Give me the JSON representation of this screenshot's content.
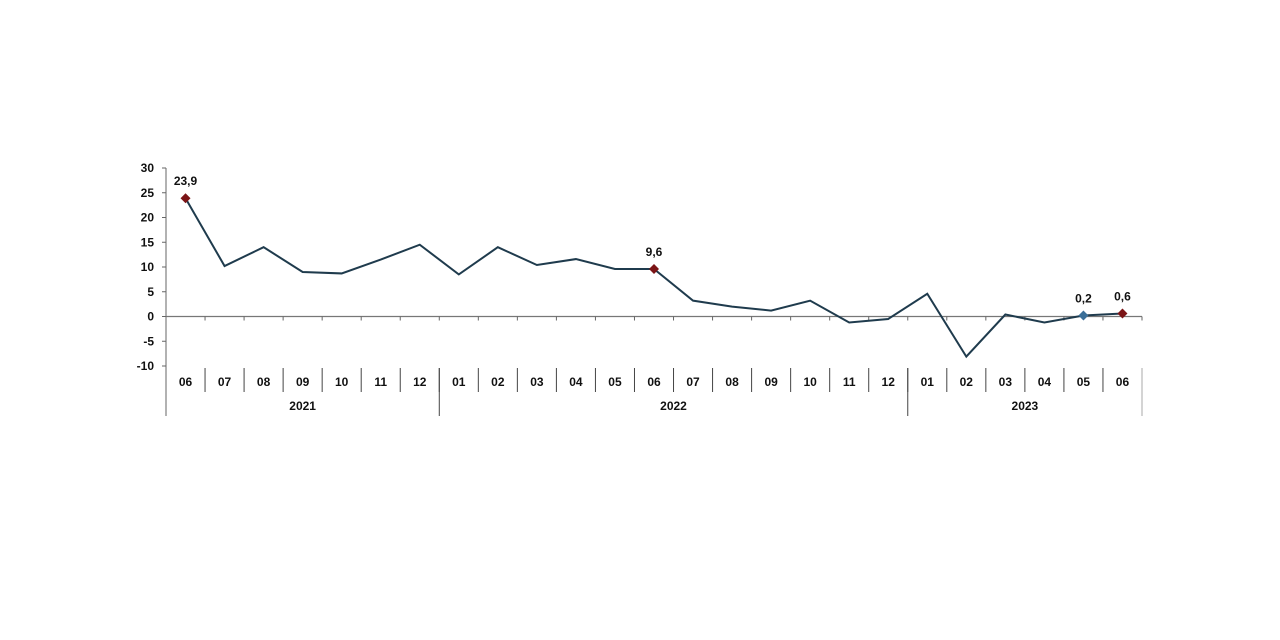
{
  "chart_data": {
    "type": "line",
    "title": "",
    "xlabel": "",
    "ylabel": "",
    "ylim": [
      -10,
      30
    ],
    "yticks": [
      "30",
      "25",
      "20",
      "15",
      "10",
      "5",
      "0",
      "-5",
      "-10"
    ],
    "ytick_values": [
      30,
      25,
      20,
      15,
      10,
      5,
      0,
      -5,
      -10
    ],
    "grid": false,
    "line_color": "#1f3b4d",
    "highlight_color": "#7b1416",
    "highlight_color_alt": "#3b6f98",
    "categories": [
      "06",
      "07",
      "08",
      "09",
      "10",
      "11",
      "12",
      "01",
      "02",
      "03",
      "04",
      "05",
      "06",
      "07",
      "08",
      "09",
      "10",
      "11",
      "12",
      "01",
      "02",
      "03",
      "04",
      "05",
      "06"
    ],
    "years": [
      {
        "label": "2021",
        "start": 0,
        "end": 6
      },
      {
        "label": "2022",
        "start": 7,
        "end": 18
      },
      {
        "label": "2023",
        "start": 19,
        "end": 24
      }
    ],
    "values": [
      23.9,
      10.2,
      14.0,
      9.0,
      8.7,
      11.5,
      14.5,
      8.5,
      14.0,
      10.4,
      11.6,
      9.6,
      9.6,
      3.2,
      2.0,
      1.2,
      3.2,
      -1.2,
      -0.5,
      4.6,
      -8.1,
      0.4,
      -1.2,
      0.2,
      0.6
    ],
    "data_labels": [
      {
        "index": 0,
        "text": "23,9",
        "color": "#7b1416"
      },
      {
        "index": 12,
        "text": "9,6",
        "color": "#7b1416"
      },
      {
        "index": 23,
        "text": "0,2",
        "color": "#3b6f98"
      },
      {
        "index": 24,
        "text": "0,6",
        "color": "#7b1416"
      }
    ]
  }
}
